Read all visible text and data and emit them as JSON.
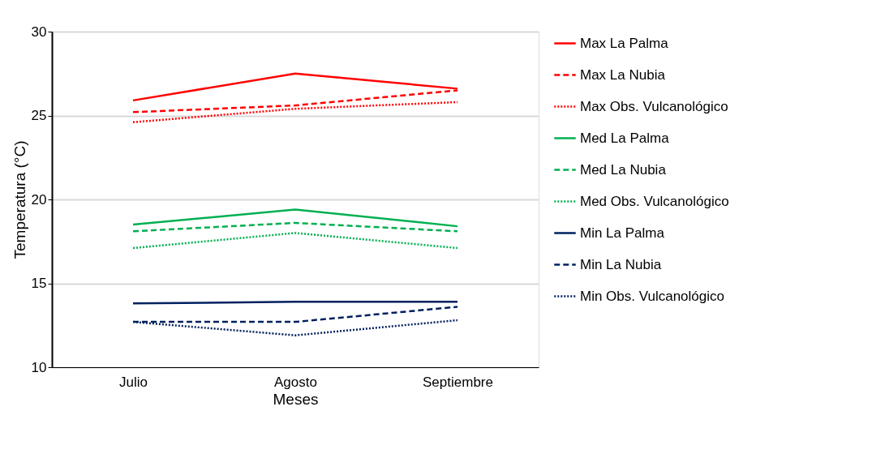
{
  "chart_data": {
    "type": "line",
    "xlabel": "Meses",
    "ylabel": "Temperatura (°C)",
    "categories": [
      "Julio",
      "Agosto",
      "Septiembre"
    ],
    "ylim": [
      10,
      30
    ],
    "yticks": [
      10,
      15,
      20,
      25,
      30
    ],
    "grid": "y",
    "legend": "right",
    "marker": "none",
    "series": [
      {
        "name": "Max La Palma",
        "color": "#ff0000",
        "line_style": "solid",
        "values": [
          25.9,
          27.5,
          26.6
        ]
      },
      {
        "name": "Max La Nubia",
        "color": "#ff0000",
        "line_style": "dashed",
        "values": [
          25.2,
          25.6,
          26.5
        ]
      },
      {
        "name": "Max Obs. Vulcanológico",
        "color": "#ff0000",
        "line_style": "dotted",
        "values": [
          24.6,
          25.4,
          25.8
        ]
      },
      {
        "name": "Med La Palma",
        "color": "#00b050",
        "line_style": "solid",
        "values": [
          18.5,
          19.4,
          18.4
        ]
      },
      {
        "name": "Med La Nubia",
        "color": "#00b050",
        "line_style": "dashed",
        "values": [
          18.1,
          18.6,
          18.1
        ]
      },
      {
        "name": "Med Obs. Vulcanológico",
        "color": "#00b050",
        "line_style": "dotted",
        "values": [
          17.1,
          18.0,
          17.1
        ]
      },
      {
        "name": "Min La Palma",
        "color": "#002060",
        "line_style": "solid",
        "values": [
          13.8,
          13.9,
          13.9
        ]
      },
      {
        "name": "Min La Nubia",
        "color": "#002060",
        "line_style": "dashed",
        "values": [
          12.7,
          12.7,
          13.6
        ]
      },
      {
        "name": "Min Obs. Vulcanológico",
        "color": "#002060",
        "line_style": "dotted",
        "values": [
          12.7,
          11.9,
          12.8
        ]
      }
    ]
  }
}
